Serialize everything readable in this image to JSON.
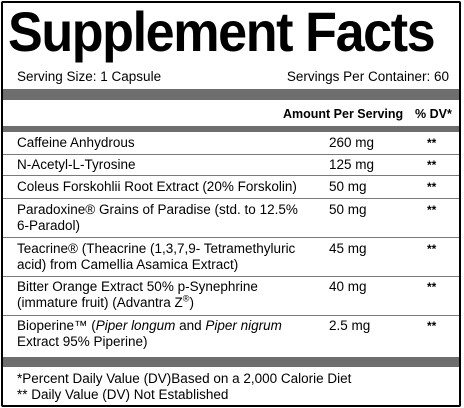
{
  "title": "Supplement Facts",
  "serving": {
    "size": "Serving Size: 1 Capsule",
    "per_container": "Servings Per Container: 60"
  },
  "headers": {
    "amount": "Amount Per Serving",
    "dv": "% DV*"
  },
  "ingredients": [
    {
      "name": "Caffeine Anhydrous",
      "amount": "260 mg",
      "dv": "**"
    },
    {
      "name": "N-Acetyl-L-Tyrosine",
      "amount": "125 mg",
      "dv": "**"
    },
    {
      "name": "Coleus Forskohlii Root Extract (20% Forskolin)",
      "amount": "50 mg",
      "dv": "**"
    },
    {
      "name_line1": "Paradoxine® Grains of Paradise (std. to 12.5%",
      "name_line2": "6-Paradol)",
      "amount": "50 mg",
      "dv": "**"
    },
    {
      "name_line1": "Teacrine® (Theacrine (1,3,7,9- Tetramethyluric",
      "name_line2": "acid) from Camellia Asamica Extract)",
      "amount": "45 mg",
      "dv": "**"
    },
    {
      "name_line1": "Bitter Orange Extract 50% p-Synephrine",
      "name_line2_a": "(immature fruit) (Advantra Z",
      "name_line2_sup": "®",
      "name_line2_b": ")",
      "amount": "40 mg",
      "dv": "**"
    },
    {
      "name_line1_a": "Bioperine™ (",
      "name_line1_i1": "Piper longum",
      "name_line1_b": " and ",
      "name_line1_i2": "Piper nigrum",
      "name_line2": "Extract 95% Piperine)",
      "amount": "2.5 mg",
      "dv": "**"
    }
  ],
  "footnotes": {
    "dv_note": "*Percent Daily Value (DV)Based on a 2,000 Calorie Diet",
    "not_established": "** Daily Value (DV) Not Established"
  },
  "colors": {
    "bars": "#6e6e6e",
    "text": "#000000",
    "background": "#ffffff"
  }
}
